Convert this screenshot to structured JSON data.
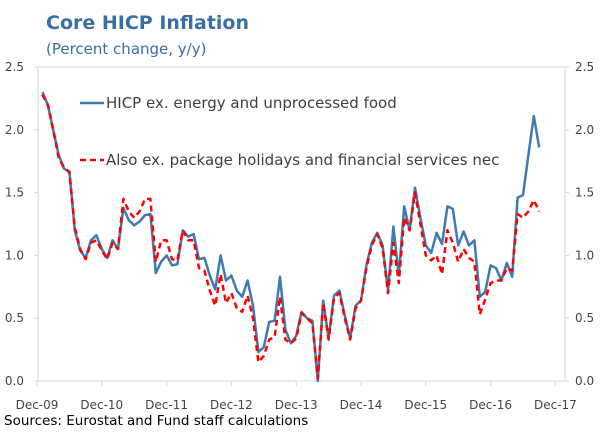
{
  "chart_data": {
    "type": "line",
    "title": "Core HICP Inflation",
    "subtitle": "(Percent change, y/y)",
    "source": "Sources: Eurostat and Fund staff calculations",
    "x_start": "Jan-10",
    "x_frequency": "monthly",
    "xtick_labels": [
      "Dec-09",
      "Dec-10",
      "Dec-11",
      "Dec-12",
      "Dec-13",
      "Dec-14",
      "Dec-15",
      "Dec-16",
      "Dec-17"
    ],
    "yticks": [
      "0.0",
      "0.5",
      "1.0",
      "1.5",
      "2.0",
      "2.5"
    ],
    "ylim": [
      0,
      2.5
    ],
    "grid": false,
    "legend_placement": "top-center",
    "colors": {
      "title": "#3a6fa5",
      "series1": "#3f7bb0",
      "series2": "#ff0000"
    },
    "series": [
      {
        "name": "HICP ex. energy and unprocessed food",
        "values": [
          2.3,
          2.2,
          2.0,
          1.8,
          1.69,
          1.67,
          1.2,
          1.04,
          0.98,
          1.12,
          1.16,
          1.05,
          0.98,
          1.12,
          1.05,
          1.38,
          1.28,
          1.24,
          1.27,
          1.32,
          1.33,
          0.86,
          0.95,
          1.0,
          0.92,
          0.93,
          1.2,
          1.15,
          1.17,
          0.97,
          0.98,
          0.84,
          0.73,
          1.0,
          0.8,
          0.84,
          0.72,
          0.67,
          0.8,
          0.6,
          0.23,
          0.27,
          0.47,
          0.48,
          0.83,
          0.41,
          0.3,
          0.36,
          0.55,
          0.5,
          0.48,
          0.0,
          0.64,
          0.34,
          0.68,
          0.72,
          0.52,
          0.34,
          0.6,
          0.64,
          0.92,
          1.1,
          1.18,
          1.08,
          0.72,
          1.23,
          0.84,
          1.39,
          1.2,
          1.54,
          1.3,
          1.08,
          1.02,
          1.18,
          1.09,
          1.39,
          1.37,
          1.08,
          1.19,
          1.08,
          1.12,
          0.67,
          0.71,
          0.92,
          0.9,
          0.8,
          0.94,
          0.83,
          1.46,
          1.48,
          1.8,
          2.11,
          1.86
        ]
      },
      {
        "name": "Also ex. package holidays and financial services nec",
        "values": [
          2.28,
          2.2,
          2.0,
          1.78,
          1.7,
          1.66,
          1.22,
          1.05,
          0.97,
          1.1,
          1.12,
          1.04,
          0.97,
          1.1,
          1.05,
          1.45,
          1.35,
          1.3,
          1.35,
          1.45,
          1.45,
          0.95,
          1.12,
          1.12,
          0.97,
          0.96,
          1.2,
          1.12,
          1.12,
          0.9,
          0.88,
          0.72,
          0.6,
          0.85,
          0.62,
          0.7,
          0.58,
          0.55,
          0.68,
          0.5,
          0.15,
          0.2,
          0.33,
          0.35,
          0.67,
          0.33,
          0.3,
          0.34,
          0.54,
          0.5,
          0.46,
          0.02,
          0.62,
          0.33,
          0.66,
          0.7,
          0.5,
          0.33,
          0.58,
          0.64,
          0.9,
          1.08,
          1.17,
          1.06,
          0.7,
          1.1,
          0.78,
          1.3,
          1.2,
          1.5,
          1.25,
          1.0,
          0.96,
          1.0,
          0.85,
          1.2,
          1.1,
          0.95,
          1.05,
          0.98,
          0.95,
          0.53,
          0.65,
          0.78,
          0.8,
          0.8,
          0.9,
          0.88,
          1.33,
          1.3,
          1.35,
          1.44,
          1.35
        ]
      }
    ]
  }
}
